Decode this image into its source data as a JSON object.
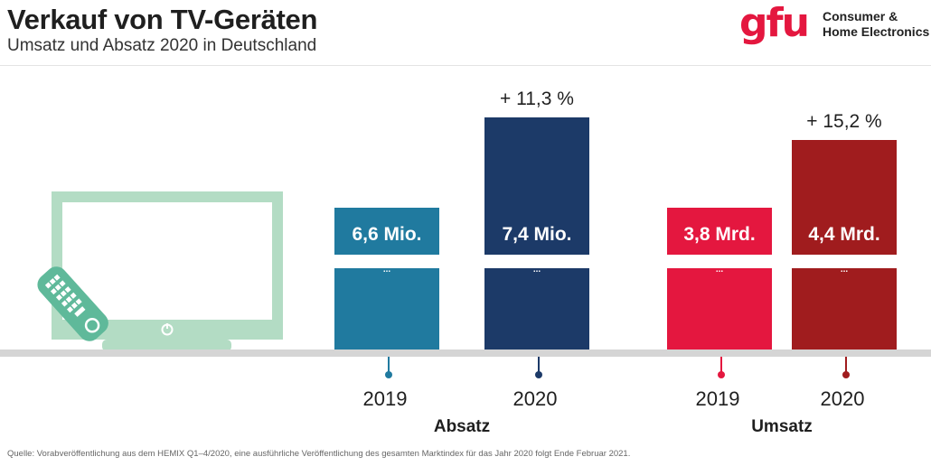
{
  "header": {
    "title": "Verkauf von TV-Geräten",
    "subtitle": "Umsatz und Absatz 2020 in Deutschland"
  },
  "logo": {
    "mark": "gfu",
    "line1": "Consumer &",
    "line2": "Home Electronics"
  },
  "footer": {
    "source": "Quelle: Vorabveröffentlichung aus dem HEMIX Q1–4/2020, eine ausführliche Veröffentlichung des gesamten Marktindex für das Jahr 2020 folgt Ende Februar 2021."
  },
  "colors": {
    "absatz_2019": "#207a9f",
    "absatz_2020": "#1c3a68",
    "umsatz_2019": "#e4173f",
    "umsatz_2020": "#a01c1e",
    "ground": "#d5d5d5",
    "tv": "#b3dcc4",
    "remote": "#5fb99a"
  },
  "chart_data": {
    "type": "bar",
    "groups": [
      {
        "name": "Absatz",
        "change_label": "+ 11,3 %",
        "bars": [
          {
            "year": "2019",
            "value": 6.6,
            "label": "6,6 Mio.",
            "color": "#207a9f"
          },
          {
            "year": "2020",
            "value": 7.4,
            "label": "7,4 Mio.",
            "color": "#1c3a68"
          }
        ]
      },
      {
        "name": "Umsatz",
        "change_label": "+ 15,2 %",
        "bars": [
          {
            "year": "2019",
            "value": 3.8,
            "label": "3,8 Mrd.",
            "color": "#e4173f"
          },
          {
            "year": "2020",
            "value": 4.4,
            "label": "4,4 Mrd.",
            "color": "#a01c1e"
          }
        ]
      }
    ],
    "axis_break": true
  }
}
